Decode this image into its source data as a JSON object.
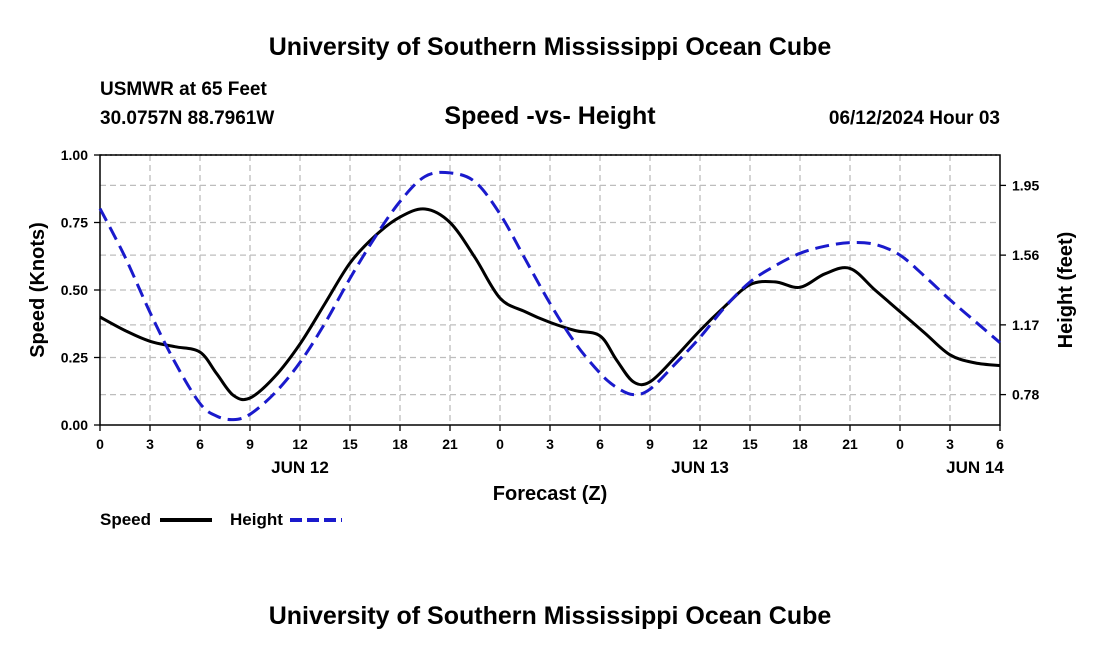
{
  "chart_data": {
    "type": "line",
    "title": "University of Southern Mississippi Ocean Cube",
    "footer_title": "University of Southern Mississippi Ocean Cube",
    "subtitle": "Speed -vs- Height",
    "station": "USMWR at 65 Feet",
    "location": "30.0757N  88.7961W",
    "timestamp": "06/12/2024 Hour 03",
    "xlabel": "Forecast (Z)",
    "ylabel_left": "Speed (Knots)",
    "ylabel_right": "Height (feet)",
    "ylim_left": [
      0,
      1
    ],
    "ylim_right": [
      0.61,
      2.12
    ],
    "xlim": [
      0,
      54
    ],
    "x_ticks": [
      0,
      3,
      6,
      9,
      12,
      15,
      18,
      21,
      24,
      27,
      30,
      33,
      36,
      39,
      42,
      45,
      48,
      51,
      54
    ],
    "x_tick_labels": [
      "0",
      "3",
      "6",
      "9",
      "12",
      "15",
      "18",
      "21",
      "0",
      "3",
      "6",
      "9",
      "12",
      "15",
      "18",
      "21",
      "0",
      "3",
      "6"
    ],
    "left_ticks": [
      0,
      0.25,
      0.5,
      0.75,
      1.0
    ],
    "left_tick_labels": [
      "0.00",
      "0.25",
      "0.50",
      "0.75",
      "1.00"
    ],
    "right_ticks": [
      0.78,
      1.17,
      1.56,
      1.95
    ],
    "right_tick_labels": [
      "0.78",
      "1.17",
      "1.56",
      "1.95"
    ],
    "date_labels": [
      {
        "x": 12,
        "label": "JUN 12"
      },
      {
        "x": 36,
        "label": "JUN 13"
      },
      {
        "x": 52.5,
        "label": "JUN 14"
      }
    ],
    "grid": true,
    "legend": [
      {
        "name": "Speed",
        "color": "#000000",
        "dash": "solid"
      },
      {
        "name": "Height",
        "color": "#1a1acc",
        "dash": "dashed"
      }
    ],
    "series": [
      {
        "name": "Speed",
        "axis": "left",
        "x": [
          0,
          1.5,
          3,
          4.5,
          6,
          7,
          8,
          9,
          10.5,
          12,
          13.5,
          15,
          16.5,
          18,
          19.5,
          21,
          22.5,
          24,
          25.5,
          27,
          28.5,
          30,
          31,
          32,
          33,
          34.5,
          36,
          37.5,
          39,
          40.5,
          42,
          43.5,
          45,
          46.5,
          48,
          49.5,
          51,
          52.5,
          54
        ],
        "values": [
          0.4,
          0.35,
          0.31,
          0.29,
          0.27,
          0.19,
          0.11,
          0.1,
          0.18,
          0.3,
          0.45,
          0.6,
          0.7,
          0.77,
          0.8,
          0.75,
          0.62,
          0.47,
          0.42,
          0.38,
          0.35,
          0.33,
          0.24,
          0.16,
          0.16,
          0.25,
          0.35,
          0.44,
          0.52,
          0.53,
          0.51,
          0.56,
          0.58,
          0.5,
          0.42,
          0.34,
          0.26,
          0.23,
          0.22
        ]
      },
      {
        "name": "Height",
        "axis": "right",
        "x": [
          0,
          1.5,
          3,
          4.5,
          6,
          7,
          8,
          9,
          10.5,
          12,
          13.5,
          15,
          16.5,
          18,
          19.5,
          21,
          22.5,
          24,
          25.5,
          27,
          28.5,
          30,
          31,
          32,
          33,
          34.5,
          36,
          37.5,
          39,
          40.5,
          42,
          43.5,
          45,
          46.5,
          48,
          49.5,
          51,
          52.5,
          54
        ],
        "values": [
          1.82,
          1.55,
          1.24,
          0.96,
          0.73,
          0.66,
          0.64,
          0.67,
          0.79,
          0.96,
          1.18,
          1.43,
          1.66,
          1.86,
          2.0,
          2.02,
          1.97,
          1.79,
          1.54,
          1.29,
          1.07,
          0.9,
          0.82,
          0.78,
          0.81,
          0.95,
          1.1,
          1.27,
          1.41,
          1.5,
          1.57,
          1.61,
          1.63,
          1.62,
          1.56,
          1.44,
          1.31,
          1.19,
          1.07
        ]
      }
    ]
  }
}
